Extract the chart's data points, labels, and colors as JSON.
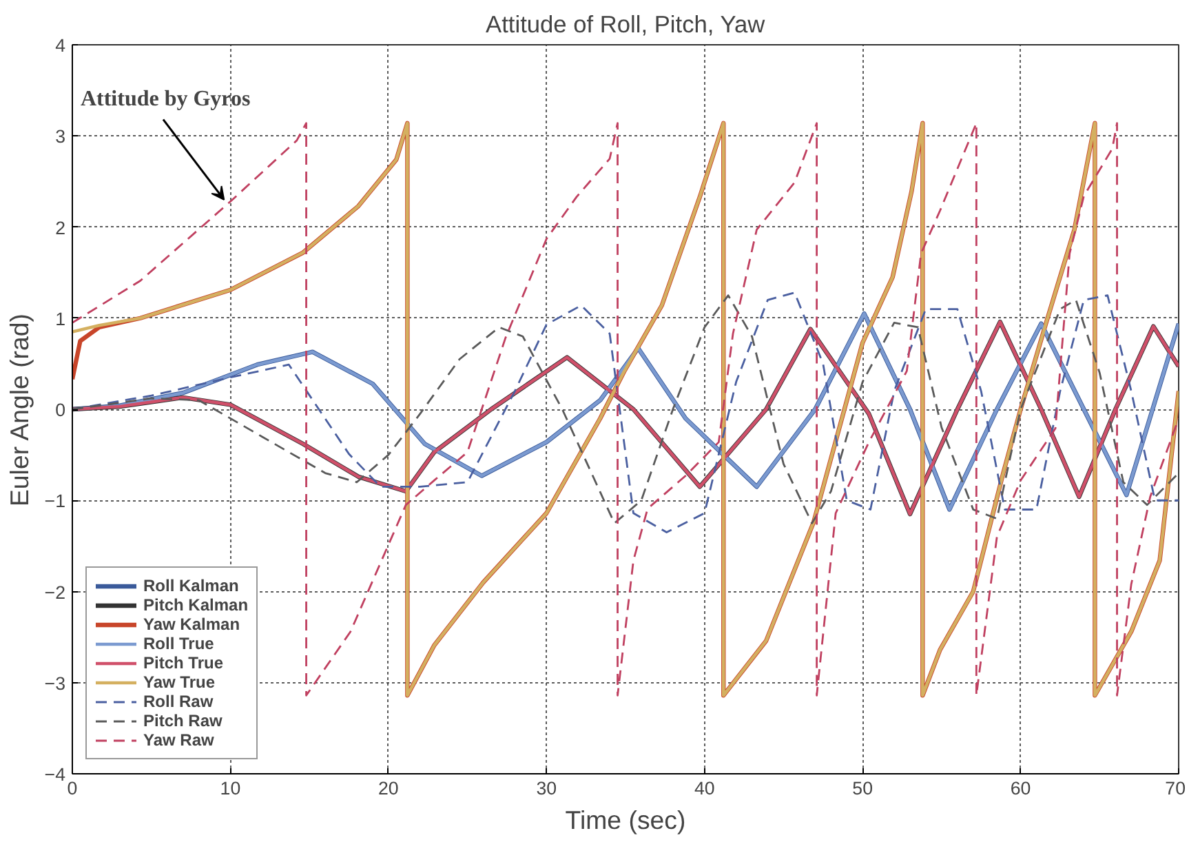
{
  "chart_data": {
    "type": "line",
    "title": "Attitude of Roll, Pitch, Yaw",
    "xlabel": "Time (sec)",
    "ylabel": "Euler Angle (rad)",
    "xlim": [
      0,
      70
    ],
    "ylim": [
      -4,
      4
    ],
    "xticks": [
      0,
      10,
      20,
      30,
      40,
      50,
      60,
      70
    ],
    "yticks": [
      -4,
      -3,
      -2,
      -1,
      0,
      1,
      2,
      3,
      4
    ],
    "grid": true,
    "legend": "bottom left",
    "annotations": [
      {
        "text": "Attitude by Gyros",
        "x": 9.6,
        "y": 2.3
      }
    ],
    "series": [
      {
        "name": "Roll Kalman",
        "color": "#3a5a9a",
        "line_style": "solid",
        "x": [
          0,
          3,
          7,
          11.7,
          15.2,
          19,
          22.3,
          25.9,
          30,
          33.4,
          35.8,
          38.8,
          43.3,
          47,
          50.1,
          53,
          55.5,
          58.5,
          61.3,
          64,
          66.7,
          70
        ],
        "values": [
          0,
          0.04,
          0.18,
          0.49,
          0.63,
          0.28,
          -0.38,
          -0.73,
          -0.36,
          0.1,
          0.67,
          -0.1,
          -0.85,
          0,
          1.05,
          0,
          -1.1,
          0,
          0.94,
          0,
          -0.94,
          0.94
        ]
      },
      {
        "name": "Pitch Kalman",
        "color": "#333333",
        "line_style": "solid",
        "x": [
          0,
          3,
          7,
          10,
          14.6,
          18.1,
          21.1,
          22.9,
          26.5,
          31.3,
          35.5,
          39.7,
          43.9,
          46.7,
          50.4,
          53,
          56,
          58.7,
          61.3,
          63.7,
          66,
          68.4,
          70
        ],
        "values": [
          0,
          0.03,
          0.13,
          0.05,
          -0.38,
          -0.74,
          -0.9,
          -0.47,
          0,
          0.57,
          0,
          -0.85,
          0,
          0.88,
          -0.05,
          -1.15,
          0,
          0.96,
          0,
          -0.96,
          0,
          0.91,
          0.47
        ]
      },
      {
        "name": "Yaw Kalman",
        "color": "#c8452a",
        "line_style": "solid",
        "x": [
          0,
          0.5,
          1.7,
          4.3,
          10,
          14.6,
          18.1,
          20.5,
          21.2,
          21.2,
          22.9,
          26,
          30,
          33.4,
          34.9,
          37.3,
          39.7,
          41.2,
          41.2,
          43.9,
          46.9,
          50,
          51.9,
          53.1,
          53.8,
          53.8,
          54.9,
          57,
          58.9,
          60,
          61.6,
          63.4,
          64.7,
          64.7,
          67,
          68.8,
          70
        ],
        "values": [
          0.33,
          0.75,
          0.9,
          1.0,
          1.31,
          1.72,
          2.23,
          2.74,
          3.14,
          -3.14,
          -2.59,
          -1.9,
          -1.14,
          -0.1,
          0.41,
          1.14,
          2.33,
          3.14,
          -3.14,
          -2.54,
          -1.24,
          0.73,
          1.45,
          2.39,
          3.14,
          -3.14,
          -2.64,
          -2.0,
          -0.7,
          0,
          0.94,
          1.97,
          3.14,
          -3.14,
          -2.44,
          -1.66,
          0.2
        ]
      },
      {
        "name": "Roll True",
        "color": "#7b9ad0",
        "line_style": "solid",
        "x": [
          0,
          3,
          7,
          11.7,
          15.2,
          19,
          22.3,
          25.9,
          30,
          33.4,
          35.8,
          38.8,
          43.3,
          47,
          50.1,
          53,
          55.5,
          58.5,
          61.3,
          64,
          66.7,
          70
        ],
        "values": [
          0,
          0.04,
          0.18,
          0.49,
          0.63,
          0.28,
          -0.38,
          -0.73,
          -0.36,
          0.1,
          0.67,
          -0.1,
          -0.85,
          0,
          1.05,
          0,
          -1.1,
          0,
          0.94,
          0,
          -0.94,
          0.94
        ]
      },
      {
        "name": "Pitch True",
        "color": "#d0506a",
        "line_style": "solid",
        "x": [
          0,
          3,
          7,
          10,
          14.6,
          18.1,
          21.1,
          22.9,
          26.5,
          31.3,
          35.5,
          39.7,
          43.9,
          46.7,
          50.4,
          53,
          56,
          58.7,
          61.3,
          63.7,
          66,
          68.4,
          70
        ],
        "values": [
          0,
          0.03,
          0.13,
          0.05,
          -0.38,
          -0.74,
          -0.9,
          -0.47,
          0,
          0.57,
          0,
          -0.85,
          0,
          0.88,
          -0.05,
          -1.15,
          0,
          0.96,
          0,
          -0.96,
          0,
          0.91,
          0.47
        ]
      },
      {
        "name": "Yaw True",
        "color": "#d4b060",
        "line_style": "solid",
        "x": [
          0,
          1.7,
          4.3,
          10,
          14.6,
          18.1,
          20.5,
          21.2,
          21.2,
          22.9,
          26,
          30,
          33.4,
          34.9,
          37.3,
          39.7,
          41.2,
          41.2,
          43.9,
          46.9,
          50,
          51.9,
          53.1,
          53.8,
          53.8,
          54.9,
          57,
          58.9,
          60,
          61.6,
          63.4,
          64.7,
          64.7,
          67,
          68.8,
          70
        ],
        "values": [
          0.85,
          0.92,
          1.0,
          1.31,
          1.72,
          2.23,
          2.74,
          3.14,
          -3.14,
          -2.59,
          -1.9,
          -1.14,
          -0.1,
          0.41,
          1.14,
          2.33,
          3.14,
          -3.14,
          -2.54,
          -1.24,
          0.73,
          1.45,
          2.39,
          3.14,
          -3.14,
          -2.64,
          -2.0,
          -0.7,
          0,
          0.94,
          1.97,
          3.14,
          -3.14,
          -2.44,
          -1.66,
          0.2
        ]
      },
      {
        "name": "Roll Raw",
        "color": "#4a5fa0",
        "line_style": "dashed",
        "x": [
          0,
          5,
          10,
          13.7,
          17.5,
          19.5,
          22,
          25,
          28,
          30,
          32.2,
          34,
          35.5,
          37.6,
          40,
          42,
          44,
          45.7,
          47.5,
          49,
          50.5,
          52,
          54,
          56,
          57.5,
          59,
          61,
          62.5,
          64,
          65.5,
          67,
          68.5,
          70
        ],
        "values": [
          0,
          0.15,
          0.35,
          0.49,
          -0.49,
          -0.85,
          -0.85,
          -0.8,
          0.2,
          0.93,
          1.14,
          0.83,
          -1.14,
          -1.35,
          -1.14,
          0.3,
          1.2,
          1.28,
          0.5,
          -1.0,
          -1.1,
          0.2,
          1.1,
          1.1,
          0.2,
          -1.1,
          -1.1,
          0.2,
          1.2,
          1.25,
          0.2,
          -1.0,
          -1.0
        ]
      },
      {
        "name": "Pitch Raw",
        "color": "#5a5a5a",
        "line_style": "dashed",
        "x": [
          0,
          5,
          8,
          12,
          16,
          18,
          20,
          22,
          24.5,
          27,
          28.5,
          31,
          34.3,
          36,
          38,
          40,
          41.5,
          43,
          45,
          46.8,
          48,
          50,
          52,
          53.5,
          55,
          57,
          58.5,
          60,
          62.5,
          63.5,
          65,
          66.5,
          68,
          70
        ],
        "values": [
          0,
          0.12,
          0.1,
          -0.3,
          -0.7,
          -0.8,
          -0.5,
          -0.05,
          0.55,
          0.9,
          0.8,
          0,
          -1.25,
          -1.0,
          0,
          0.9,
          1.25,
          0.8,
          -0.6,
          -1.25,
          -0.9,
          0.3,
          0.95,
          0.9,
          -0.2,
          -1.1,
          -1.2,
          0,
          1.1,
          1.2,
          0.4,
          -0.8,
          -1.05,
          -0.7
        ]
      },
      {
        "name": "Yaw Raw",
        "color": "#c04060",
        "line_style": "dashed",
        "x": [
          0,
          4.3,
          10,
          14.2,
          14.8,
          14.8,
          17.6,
          21.1,
          22.9,
          25,
          27.4,
          30,
          31.9,
          34,
          34.5,
          34.5,
          35.5,
          36.4,
          38.8,
          40.9,
          41.8,
          43.3,
          45.7,
          47.1,
          47.1,
          48.3,
          50.4,
          52.8,
          53.7,
          54.9,
          57.2,
          57.2,
          58.5,
          60,
          62.2,
          63.1,
          64,
          65.8,
          66.1,
          66.1,
          67,
          68.2,
          70
        ],
        "values": [
          0.95,
          1.41,
          2.28,
          2.95,
          3.14,
          -3.14,
          -2.44,
          -1.05,
          -0.78,
          -0.47,
          0.78,
          1.87,
          2.33,
          2.75,
          3.14,
          -3.14,
          -1.66,
          -1.09,
          -0.73,
          -0.36,
          0.83,
          1.97,
          2.49,
          3.14,
          -3.14,
          -1.14,
          -0.36,
          0.42,
          1.71,
          2.18,
          3.14,
          -3.14,
          -1.4,
          -0.78,
          -0.21,
          1.71,
          2.34,
          2.86,
          3.14,
          -3.14,
          -1.92,
          -0.96,
          -0.1
        ]
      }
    ]
  }
}
